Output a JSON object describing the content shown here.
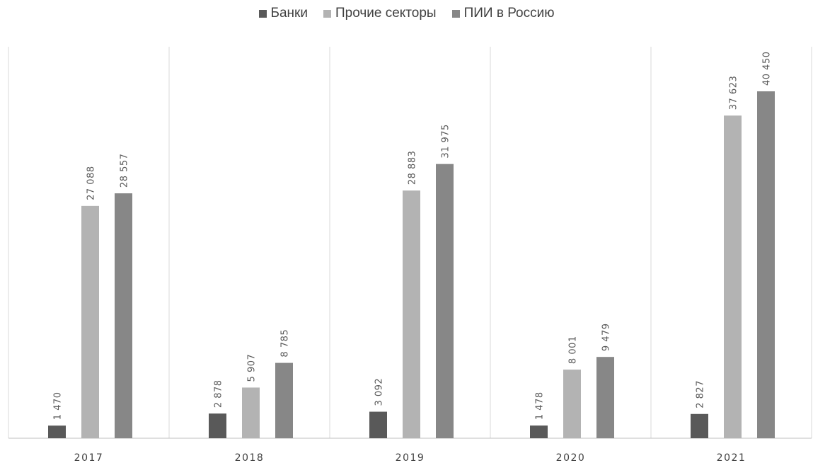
{
  "chart_data": {
    "type": "bar",
    "categories": [
      "2017",
      "2018",
      "2019",
      "2020",
      "2021"
    ],
    "series": [
      {
        "name": "Банки",
        "color": "#595959",
        "values": [
          1470,
          2878,
          3092,
          1478,
          2827
        ],
        "labels": [
          "1 470",
          "2 878",
          "3 092",
          "1 478",
          "2 827"
        ]
      },
      {
        "name": "Прочие секторы",
        "color": "#b3b3b3",
        "values": [
          27088,
          5907,
          28883,
          8001,
          37623
        ],
        "labels": [
          "27 088",
          "5 907",
          "28 883",
          "8 001",
          "37 623"
        ]
      },
      {
        "name": "ПИИ в Россию",
        "color": "#878787",
        "values": [
          28557,
          8785,
          31975,
          9479,
          40450
        ],
        "labels": [
          "28 557",
          "8 785",
          "31 975",
          "9 479",
          "40 450"
        ]
      }
    ],
    "title": "",
    "xlabel": "",
    "ylabel": "",
    "ylim": [
      0,
      45000
    ],
    "grid": "vertical category separators",
    "legend": "top-center"
  }
}
